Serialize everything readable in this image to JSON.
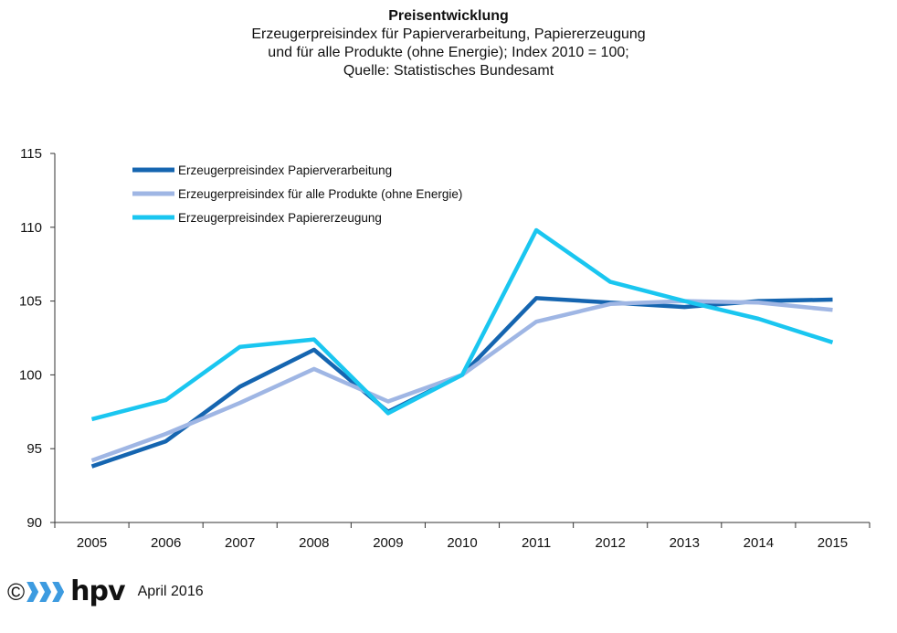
{
  "chart_data": {
    "type": "line",
    "title": "Preisentwicklung",
    "subtitle_lines": [
      "Erzeugerpreisindex für Papierverarbeitung, Papiererzeugung",
      "und für alle Produkte (ohne Energie); Index 2010 = 100;",
      "Quelle: Statistisches Bundesamt"
    ],
    "xlabel": "",
    "ylabel": "",
    "x": [
      "2005",
      "2006",
      "2007",
      "2008",
      "2009",
      "2010",
      "2011",
      "2012",
      "2013",
      "2014",
      "2015"
    ],
    "ylim": [
      90,
      115
    ],
    "yticks": [
      "90",
      "95",
      "100",
      "105",
      "110",
      "115"
    ],
    "grid": false,
    "legend_position": "top-left",
    "series": [
      {
        "name": "Erzeugerpreisindex Papierverarbeitung",
        "color": "#1565b0",
        "values": [
          93.8,
          95.5,
          99.2,
          101.7,
          97.5,
          100.0,
          105.2,
          104.9,
          104.6,
          105.0,
          105.1
        ]
      },
      {
        "name": "Erzeugerpreisindex für alle Produkte (ohne Energie)",
        "color": "#9fb6e4",
        "values": [
          94.2,
          96.0,
          98.1,
          100.4,
          98.2,
          100.0,
          103.6,
          104.8,
          105.0,
          104.9,
          104.4
        ]
      },
      {
        "name": "Erzeugerpreisindex Papiererzeugung",
        "color": "#1ac6f0",
        "values": [
          97.0,
          98.3,
          101.9,
          102.4,
          97.4,
          100.0,
          109.8,
          106.3,
          105.0,
          103.8,
          102.2
        ]
      }
    ]
  },
  "footer": {
    "copyright_symbol": "©",
    "brand": "hpv",
    "date": "April 2016"
  }
}
